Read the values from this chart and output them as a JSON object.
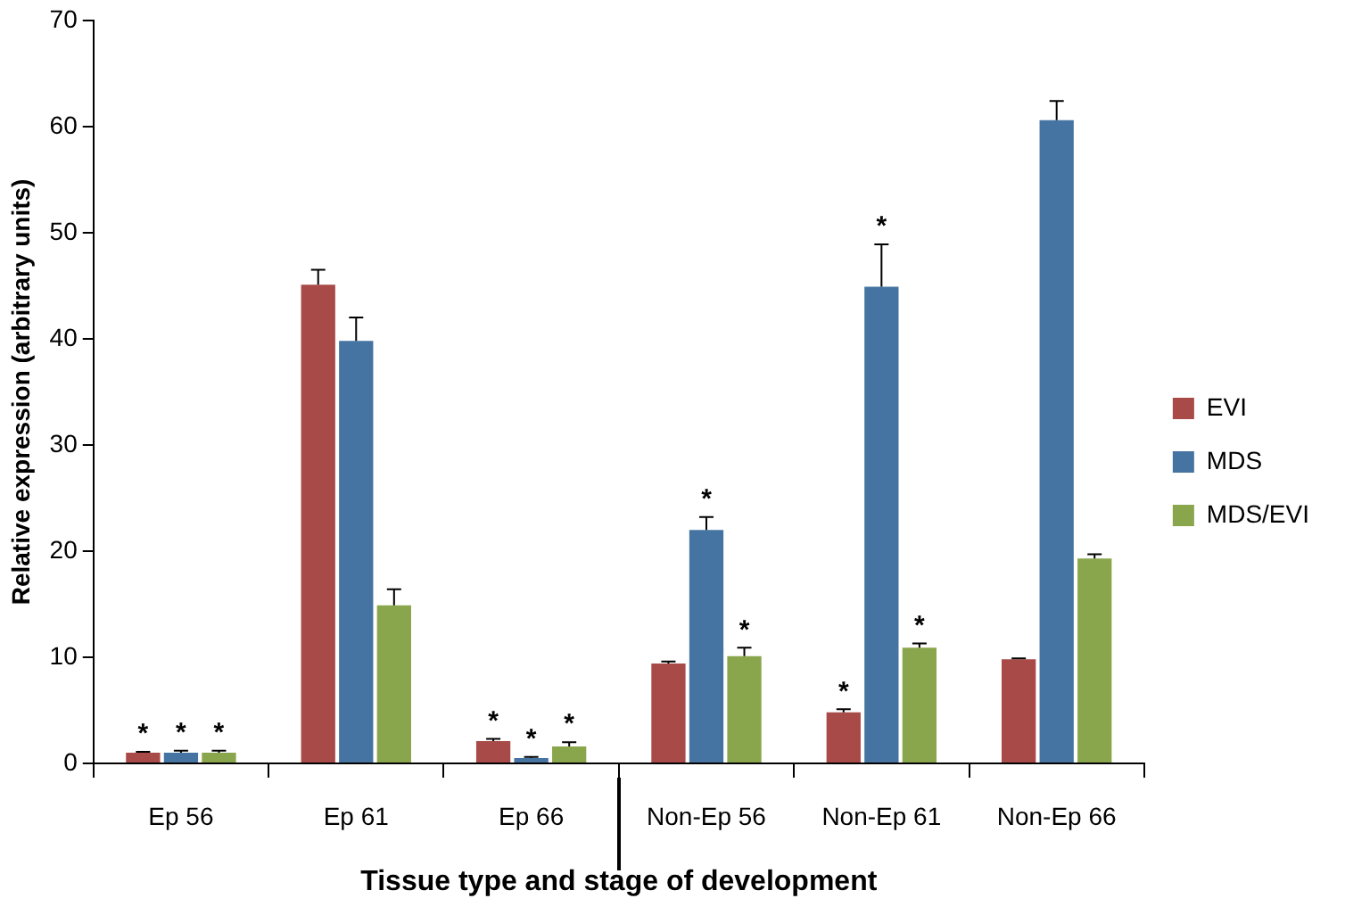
{
  "chart_data": {
    "type": "bar",
    "xlabel": "Tissue type and stage of development",
    "ylabel": "Relative expression (arbitrary units)",
    "categories": [
      "Ep 56",
      "Ep 61",
      "Ep 66",
      "Non-Ep 56",
      "Non-Ep 61",
      "Non-Ep 66"
    ],
    "series": [
      {
        "name": "EVI",
        "color": "#a84a47",
        "values": [
          1.0,
          45.1,
          2.1,
          9.4,
          4.8,
          9.8
        ],
        "errors": [
          0.1,
          1.4,
          0.2,
          0.2,
          0.3,
          0.1
        ],
        "value_labels": [
          "*",
          null,
          "*",
          null,
          "*",
          null
        ]
      },
      {
        "name": "MDS",
        "color": "#4674a2",
        "values": [
          1.0,
          39.8,
          0.5,
          22.0,
          44.9,
          60.6
        ],
        "errors": [
          0.2,
          2.2,
          0.1,
          1.2,
          4.0,
          1.8
        ],
        "value_labels": [
          "*",
          null,
          "*",
          "*",
          "*",
          null
        ]
      },
      {
        "name": "MDS/EVI",
        "color": "#8aa64d",
        "values": [
          1.0,
          14.9,
          1.6,
          10.1,
          10.9,
          19.3
        ],
        "errors": [
          0.2,
          1.5,
          0.4,
          0.8,
          0.4,
          0.4
        ],
        "value_labels": [
          "*",
          null,
          "*",
          "*",
          "*",
          null
        ]
      }
    ],
    "ylim": [
      0,
      70
    ],
    "yticks": [
      0,
      10,
      20,
      30,
      40,
      50,
      60,
      70
    ],
    "grid": false,
    "legend": "right"
  }
}
